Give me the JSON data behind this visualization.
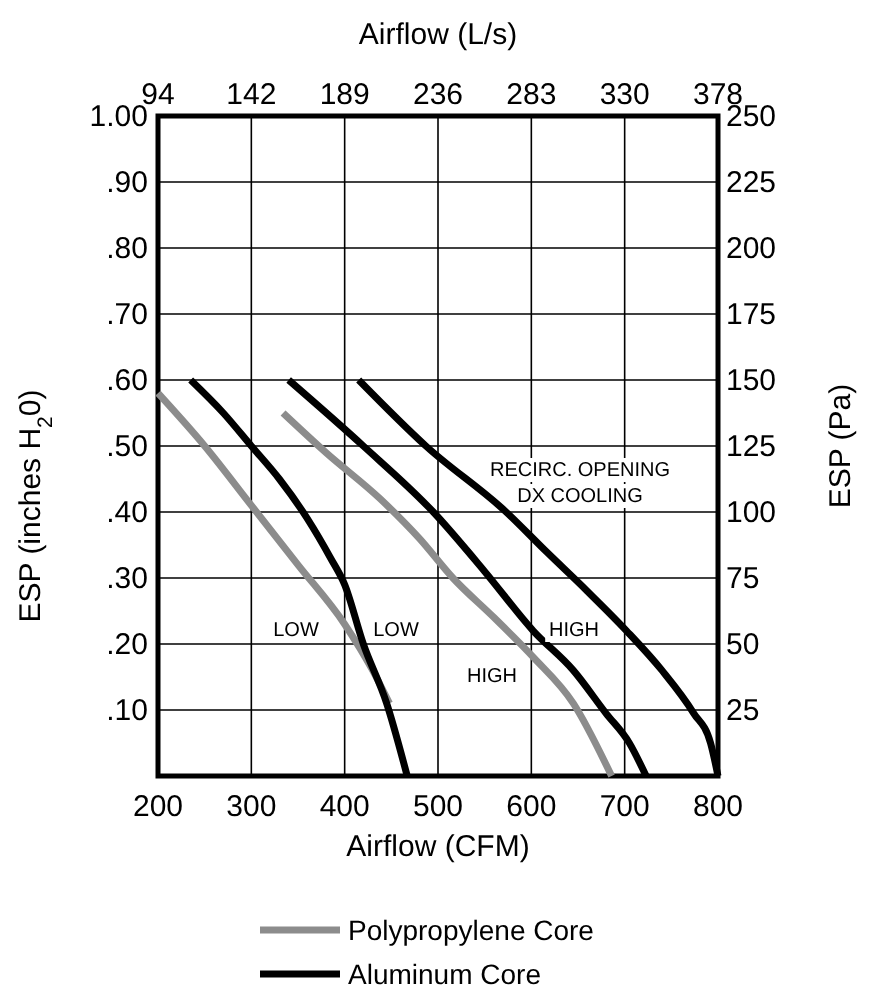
{
  "chart_data": {
    "type": "line",
    "xlabel": "Airflow (CFM)",
    "x2label": "Airflow (L/s)",
    "ylabel": "ESP (inches H$_{2}$0)",
    "y2label": "ESP (Pa)",
    "xlim": [
      200,
      800
    ],
    "xticks": [
      200,
      300,
      400,
      500,
      600,
      700,
      800
    ],
    "x2lim": [
      94.4,
      377.6
    ],
    "x2ticks": [
      {
        "value": 94.4,
        "label": "94"
      },
      {
        "value": 141.6,
        "label": "142"
      },
      {
        "value": 188.8,
        "label": "189"
      },
      {
        "value": 236,
        "label": "236"
      },
      {
        "value": 283.2,
        "label": "283"
      },
      {
        "value": 330.4,
        "label": "330"
      },
      {
        "value": 377.6,
        "label": "378"
      }
    ],
    "ylim": [
      0,
      1
    ],
    "yticks": [
      {
        "value": 0.1,
        "label": ".10"
      },
      {
        "value": 0.2,
        "label": ".20"
      },
      {
        "value": 0.3,
        "label": ".30"
      },
      {
        "value": 0.4,
        "label": ".40"
      },
      {
        "value": 0.5,
        "label": ".50"
      },
      {
        "value": 0.6,
        "label": ".60"
      },
      {
        "value": 0.7,
        "label": ".70"
      },
      {
        "value": 0.8,
        "label": ".80"
      },
      {
        "value": 0.9,
        "label": ".90"
      },
      {
        "value": 1,
        "label": "1.00"
      }
    ],
    "y2lim": [
      0,
      250
    ],
    "y2ticks": [
      25,
      50,
      75,
      100,
      125,
      150,
      175,
      200,
      225,
      250
    ],
    "grid": true,
    "legend": "bottom",
    "marker": "none",
    "line_style": "solid",
    "series": [
      {
        "name": "Polypropylene Core",
        "color": "#8c8c8c",
        "x": [
          200,
          250,
          300,
          350,
          400,
          430,
          448
        ],
        "values": [
          0.58,
          0.5,
          0.41,
          0.32,
          0.23,
          0.16,
          0.11
        ]
      },
      {
        "color": "#8c8c8c",
        "x": [
          334,
          380,
          438,
          480,
          516,
          560,
          602,
          645,
          686
        ],
        "values": [
          0.55,
          0.49,
          0.42,
          0.36,
          0.3,
          0.24,
          0.18,
          0.11,
          0
        ]
      },
      {
        "name": "Aluminum Core",
        "color": "#000000",
        "x": [
          235,
          270,
          300,
          330,
          360,
          385,
          400,
          420,
          445,
          467
        ],
        "values": [
          0.6,
          0.55,
          0.5,
          0.45,
          0.39,
          0.33,
          0.29,
          0.2,
          0.11,
          0
        ]
      },
      {
        "color": "#000000",
        "x": [
          340,
          420,
          495,
          550,
          602,
          645,
          680,
          705,
          723
        ],
        "values": [
          0.6,
          0.5,
          0.4,
          0.31,
          0.22,
          0.16,
          0.095,
          0.05,
          0
        ]
      },
      {
        "color": "#000000",
        "x": [
          415,
          487,
          573,
          616,
          660,
          702,
          740,
          774,
          792,
          800
        ],
        "values": [
          0.6,
          0.5,
          0.4,
          0.34,
          0.28,
          0.22,
          0.16,
          0.095,
          0.05,
          0
        ]
      }
    ],
    "annotations": [
      "LOW",
      "LOW",
      "HIGH",
      "HIGH",
      "RECIRC. OPENING",
      "DX COOLING"
    ]
  }
}
